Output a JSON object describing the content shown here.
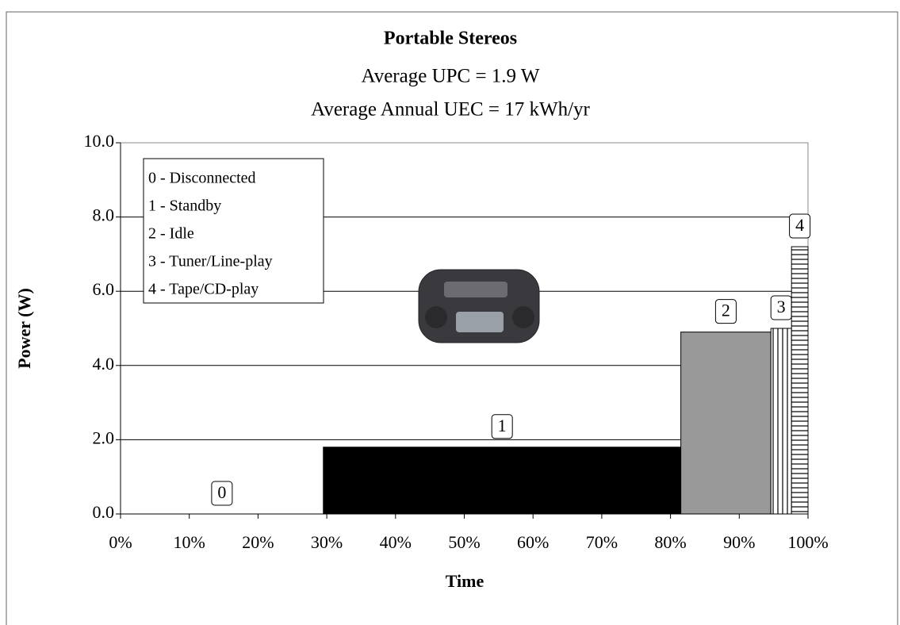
{
  "chart_data": {
    "type": "histogram",
    "title": "Portable Stereos",
    "subtitle": [
      "Average UPC = 1.9 W",
      "Average Annual UEC = 17 kWh/yr"
    ],
    "xlabel": "Time",
    "ylabel": "Power (W)",
    "bins": [
      0,
      29.5,
      81.5,
      94.6,
      97.6,
      100
    ],
    "values": [
      0,
      1.8,
      4.9,
      5.0,
      7.2
    ],
    "bar_labels": [
      "0",
      "1",
      "2",
      "3",
      "4"
    ],
    "fills": [
      "#ffffff",
      "#000000",
      "#999999",
      "vertical-lines",
      "horizontal-lines"
    ],
    "legend": [
      "0 - Disconnected",
      "1 - Standby",
      "2 - Idle",
      "3 - Tuner/Line-play",
      "4 - Tape/CD-play"
    ],
    "legend_position": "upper left",
    "xlim": [
      0,
      100
    ],
    "xticks": [
      {
        "value": 0,
        "label": "0%"
      },
      {
        "value": 10,
        "label": "10%"
      },
      {
        "value": 20,
        "label": "20%"
      },
      {
        "value": 30,
        "label": "30%"
      },
      {
        "value": 40,
        "label": "40%"
      },
      {
        "value": 50,
        "label": "50%"
      },
      {
        "value": 60,
        "label": "60%"
      },
      {
        "value": 70,
        "label": "70%"
      },
      {
        "value": 80,
        "label": "80%"
      },
      {
        "value": 90,
        "label": "90%"
      },
      {
        "value": 100,
        "label": "100%"
      }
    ],
    "ylim": [
      0,
      10
    ],
    "yticks": [
      {
        "value": 0,
        "label": "0.0"
      },
      {
        "value": 2,
        "label": "2.0"
      },
      {
        "value": 4,
        "label": "4.0"
      },
      {
        "value": 6,
        "label": "6.0"
      },
      {
        "value": 8,
        "label": "8.0"
      },
      {
        "value": 10,
        "label": "10.0"
      }
    ],
    "grid": true
  }
}
